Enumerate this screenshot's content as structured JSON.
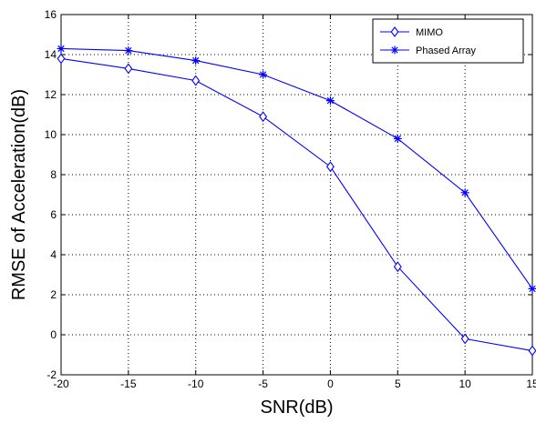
{
  "chart_data": {
    "type": "line",
    "title": "",
    "xlabel": "SNR(dB)",
    "ylabel": "RMSE of Acceleration(dB)",
    "xlim": [
      -20,
      15
    ],
    "ylim": [
      -2,
      16
    ],
    "xticks": [
      -20,
      -15,
      -10,
      -5,
      0,
      5,
      10,
      15
    ],
    "yticks": [
      -2,
      0,
      2,
      4,
      6,
      8,
      10,
      12,
      14,
      16
    ],
    "grid": true,
    "grid_style": "dotted",
    "legend_position": "top-right",
    "x": [
      -20,
      -15,
      -10,
      -5,
      0,
      5,
      10,
      15
    ],
    "series": [
      {
        "name": "MIMO",
        "marker": "diamond",
        "color": "#0000ff",
        "values": [
          13.8,
          13.3,
          12.7,
          10.9,
          8.4,
          3.4,
          -0.2,
          -0.8
        ]
      },
      {
        "name": "Phased Array",
        "marker": "star",
        "color": "#0000ff",
        "values": [
          14.3,
          14.2,
          13.7,
          13.0,
          11.7,
          9.8,
          7.1,
          2.3
        ]
      }
    ]
  }
}
